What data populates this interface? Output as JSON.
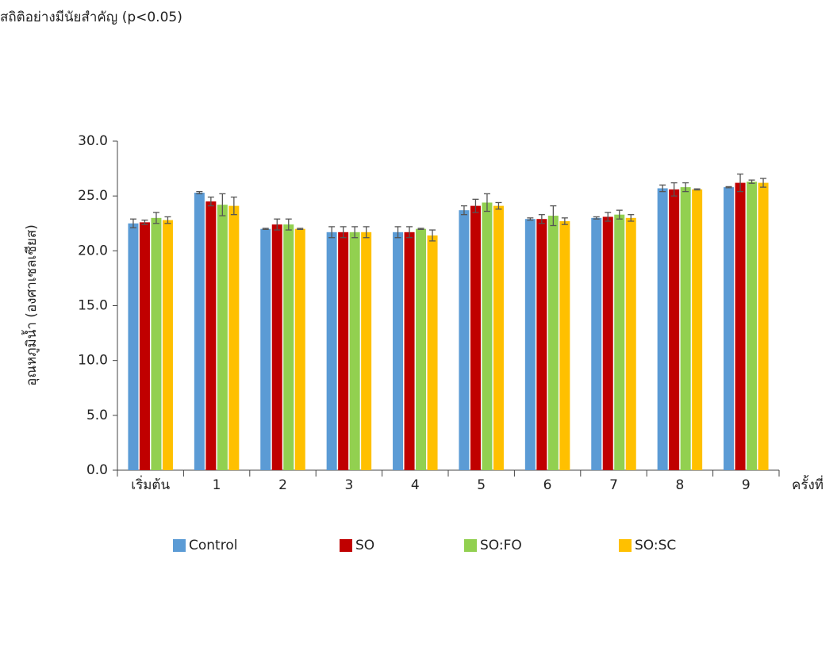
{
  "chart_data": {
    "type": "bar",
    "annotation": "สถิติอย่างมีนัยสำคัญ (p<0.05)",
    "y_label": "อุณหภูมิน้ำ (องศาเซลเซียส)",
    "x_label": "ครั้งที่",
    "categories": [
      "เริ่มต้น",
      "1",
      "2",
      "3",
      "4",
      "5",
      "6",
      "7",
      "8",
      "9"
    ],
    "series": [
      {
        "name": "Control",
        "color": "#5b9bd5",
        "values": [
          22.5,
          25.3,
          22.0,
          21.7,
          21.7,
          23.7,
          22.9,
          23.0,
          25.7,
          25.8
        ],
        "errors": [
          0.4,
          0.1,
          0.05,
          0.5,
          0.5,
          0.4,
          0.1,
          0.1,
          0.3,
          0.05
        ]
      },
      {
        "name": "SO",
        "color": "#c00000",
        "values": [
          22.6,
          24.5,
          22.4,
          21.7,
          21.7,
          24.1,
          22.9,
          23.1,
          25.6,
          26.2
        ],
        "errors": [
          0.2,
          0.4,
          0.5,
          0.5,
          0.5,
          0.6,
          0.4,
          0.4,
          0.6,
          0.8
        ]
      },
      {
        "name": "SO:FO",
        "color": "#92d050",
        "values": [
          23.0,
          24.2,
          22.4,
          21.7,
          22.0,
          24.4,
          23.2,
          23.3,
          25.8,
          26.3
        ],
        "errors": [
          0.5,
          1.0,
          0.5,
          0.5,
          0.05,
          0.8,
          0.9,
          0.4,
          0.4,
          0.15
        ]
      },
      {
        "name": "SO:SC",
        "color": "#ffc000",
        "values": [
          22.8,
          24.1,
          22.0,
          21.7,
          21.4,
          24.1,
          22.7,
          23.0,
          25.6,
          26.2
        ],
        "errors": [
          0.3,
          0.8,
          0.05,
          0.5,
          0.5,
          0.3,
          0.3,
          0.3,
          0.05,
          0.4
        ]
      }
    ],
    "ylim": [
      0,
      30
    ],
    "yticks": [
      {
        "value": 0,
        "label": "0.0"
      },
      {
        "value": 5,
        "label": "5.0"
      },
      {
        "value": 10,
        "label": "10.0"
      },
      {
        "value": 15,
        "label": "15.0"
      },
      {
        "value": 20,
        "label": "20.0"
      },
      {
        "value": 25,
        "label": "25.0"
      },
      {
        "value": 30,
        "label": "30.0"
      }
    ],
    "grid": false,
    "legend": "bottom"
  }
}
